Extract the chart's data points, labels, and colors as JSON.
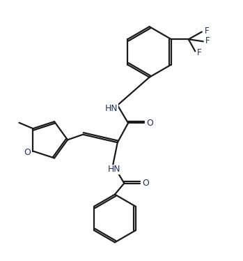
{
  "background_color": "#ffffff",
  "line_color": "#1a1a1a",
  "label_color": "#1a3060",
  "line_width": 1.6,
  "figsize": [
    3.49,
    3.74
  ],
  "dpi": 100,
  "xlim": [
    0,
    9.0
  ],
  "ylim": [
    0,
    9.6
  ]
}
